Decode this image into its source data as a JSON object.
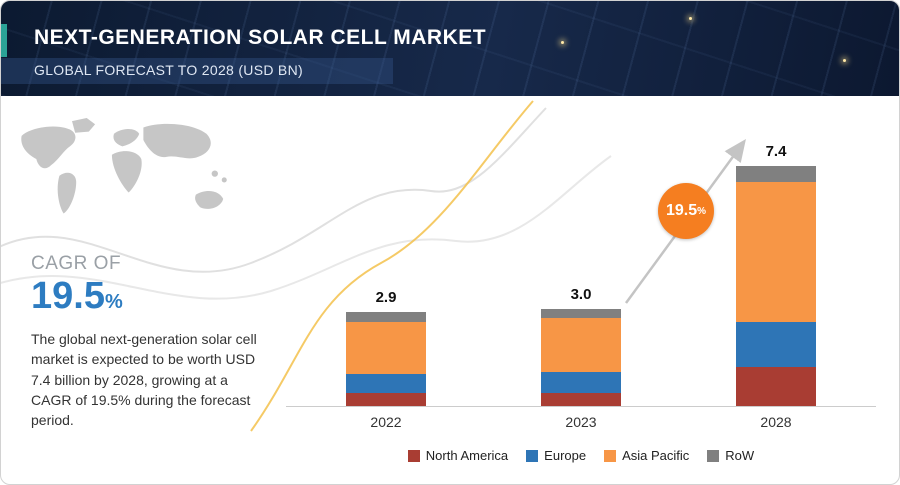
{
  "header": {
    "title": "NEXT-GENERATION SOLAR CELL MARKET",
    "subtitle": "GLOBAL FORECAST TO 2028 (USD BN)",
    "accent_color": "#2ba397"
  },
  "left_panel": {
    "cagr_label": "CAGR OF",
    "cagr_value": "19.5",
    "cagr_unit": "%",
    "cagr_color": "#2d7cc1",
    "description": "The global next-generation solar cell market is expected to be worth USD 7.4 billion by 2028, growing at a CAGR of 19.5% during the forecast period."
  },
  "chart_data": {
    "type": "bar",
    "stacked": true,
    "unit": "USD BN",
    "title": "",
    "categories": [
      "2022",
      "2023",
      "2028"
    ],
    "totals": [
      2.9,
      3.0,
      7.4
    ],
    "series": [
      {
        "name": "North America",
        "color": "#a93d33",
        "values": [
          0.4,
          0.4,
          1.2
        ]
      },
      {
        "name": "Europe",
        "color": "#2e75b6",
        "values": [
          0.6,
          0.65,
          1.4
        ]
      },
      {
        "name": "Asia Pacific",
        "color": "#f79646",
        "values": [
          1.6,
          1.65,
          4.3
        ]
      },
      {
        "name": "RoW",
        "color": "#808080",
        "values": [
          0.3,
          0.3,
          0.5
        ]
      }
    ],
    "growth_badge": {
      "value": "19.5",
      "unit": "%",
      "color": "#f57e20"
    },
    "ylim": [
      0,
      7.4
    ],
    "grid": false,
    "legend_position": "bottom"
  }
}
